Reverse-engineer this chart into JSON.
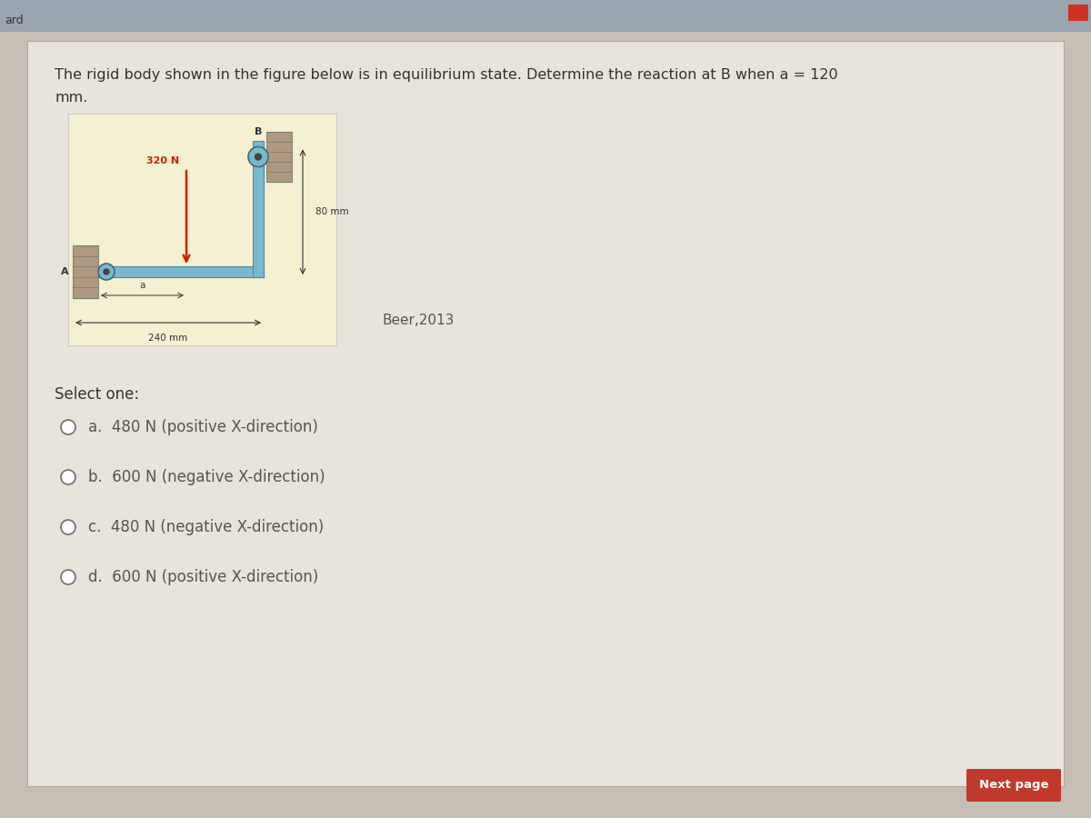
{
  "top_bar_color": "#9aa5b0",
  "bg_color": "#c5bfb5",
  "card_color": "#e8e4dc",
  "fig_bg_color": "#f5f0d0",
  "title_line1": "The rigid body shown in the figure below is in equilibrium state. Determine the reaction at B when a = 120",
  "title_line2": "mm.",
  "title_fontsize": 11.5,
  "beer_label": "Beer,2013",
  "select_one": "Select one:",
  "choices": [
    "a.  480 N (positive X-direction)",
    "b.  600 N (negative X-direction)",
    "c.  480 N (negative X-direction)",
    "d.  600 N (positive X-direction)"
  ],
  "force_label": "320 N",
  "dim_80": "80 mm",
  "dim_240": "240 mm",
  "dim_a": "a",
  "label_A": "A",
  "label_B": "B",
  "next_page": "Next page",
  "next_page_bg": "#c0392b",
  "body_color": "#7ab8d0",
  "wall_color": "#b09880",
  "arrow_color": "#cc2200",
  "text_color": "#333333",
  "choice_color": "#555555",
  "dim_line_color": "#333333"
}
